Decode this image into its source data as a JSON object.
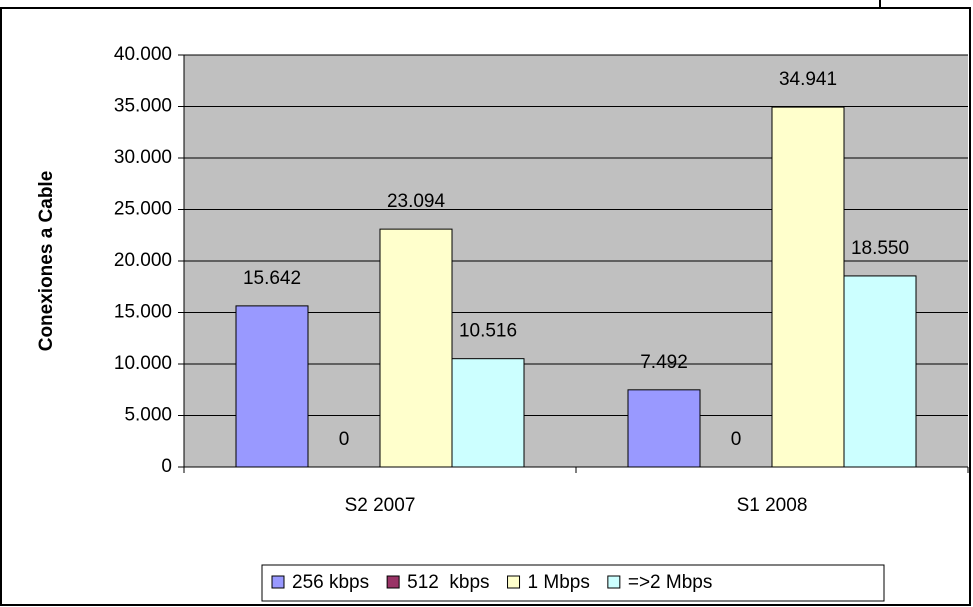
{
  "chart_data": {
    "type": "bar",
    "ylabel": "Conexiones a Cable",
    "categories": [
      "S2 2007",
      "S1 2008"
    ],
    "series": [
      {
        "name": "256 kbps",
        "color": "#9999ff",
        "values": [
          15642,
          7492
        ],
        "value_labels": [
          "15.642",
          "7.492"
        ]
      },
      {
        "name": "512  kbps",
        "color": "#993366",
        "values": [
          0,
          0
        ],
        "value_labels": [
          "0",
          "0"
        ]
      },
      {
        "name": "1 Mbps",
        "color": "#ffffcc",
        "values": [
          23094,
          34941
        ],
        "value_labels": [
          "23.094",
          "34.941"
        ]
      },
      {
        "name": "=>2 Mbps",
        "color": "#ccffff",
        "values": [
          10516,
          18550
        ],
        "value_labels": [
          "10.516",
          "18.550"
        ]
      }
    ],
    "ylim": [
      0,
      40000
    ],
    "yticks": [
      0,
      {
        "value": 5000,
        "label": "5.000"
      },
      {
        "value": 10000,
        "label": "10.000"
      },
      {
        "value": 15000,
        "label": "15.000"
      },
      {
        "value": 20000,
        "label": "20.000"
      },
      {
        "value": 25000,
        "label": "25.000"
      },
      {
        "value": 30000,
        "label": "30.000"
      },
      {
        "value": 35000,
        "label": "35.000"
      },
      {
        "value": 40000,
        "label": "40.000"
      }
    ],
    "grid": true,
    "legend": "bottom"
  }
}
